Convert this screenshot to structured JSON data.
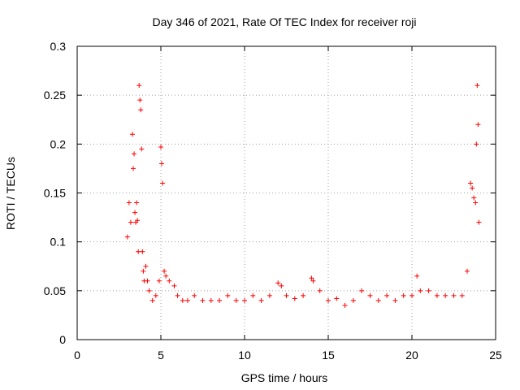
{
  "chart_data": {
    "type": "scatter",
    "title": "Day 346 of 2021, Rate Of TEC Index for receiver roji",
    "xlabel": "GPS time / hours",
    "ylabel": "ROTI / TECUs",
    "xlim": [
      0,
      25
    ],
    "ylim": [
      0,
      0.3
    ],
    "xticks": [
      0,
      5,
      10,
      15,
      20,
      25
    ],
    "yticks": [
      0,
      0.05,
      0.1,
      0.15,
      0.2,
      0.25,
      0.3
    ],
    "xtick_labels": [
      "0",
      "5",
      "10",
      "15",
      "20",
      "25"
    ],
    "ytick_labels": [
      "0",
      "0.05",
      "0.1",
      "0.15",
      "0.2",
      "0.25",
      "0.3"
    ],
    "grid": true,
    "marker": "+",
    "color": "#ff0000",
    "series": [
      {
        "name": "ROTI",
        "x": [
          3.0,
          3.1,
          3.2,
          3.3,
          3.35,
          3.4,
          3.45,
          3.5,
          3.55,
          3.6,
          3.65,
          3.7,
          3.75,
          3.8,
          3.85,
          3.9,
          3.95,
          4.0,
          4.1,
          4.2,
          4.3,
          4.5,
          4.7,
          4.9,
          5.0,
          5.05,
          5.1,
          5.2,
          5.3,
          5.5,
          5.8,
          6.0,
          6.3,
          6.6,
          7.0,
          7.5,
          8.0,
          8.5,
          9.0,
          9.5,
          10.0,
          10.5,
          11.0,
          11.5,
          12.0,
          12.2,
          12.5,
          13.0,
          13.5,
          14.0,
          14.1,
          14.5,
          15.0,
          15.5,
          16.0,
          16.5,
          17.0,
          17.5,
          18.0,
          18.5,
          19.0,
          19.5,
          20.0,
          20.3,
          20.5,
          21.0,
          21.5,
          22.0,
          22.5,
          23.0,
          23.3,
          23.5,
          23.6,
          23.7,
          23.8,
          23.85,
          23.9,
          23.95,
          24.0
        ],
        "y": [
          0.105,
          0.14,
          0.12,
          0.21,
          0.175,
          0.19,
          0.13,
          0.12,
          0.14,
          0.122,
          0.09,
          0.26,
          0.245,
          0.235,
          0.195,
          0.09,
          0.07,
          0.06,
          0.075,
          0.06,
          0.05,
          0.04,
          0.045,
          0.06,
          0.197,
          0.18,
          0.16,
          0.07,
          0.065,
          0.06,
          0.055,
          0.045,
          0.04,
          0.04,
          0.045,
          0.04,
          0.04,
          0.04,
          0.045,
          0.04,
          0.04,
          0.045,
          0.04,
          0.045,
          0.058,
          0.055,
          0.045,
          0.042,
          0.045,
          0.063,
          0.06,
          0.05,
          0.04,
          0.042,
          0.035,
          0.04,
          0.05,
          0.045,
          0.04,
          0.045,
          0.04,
          0.045,
          0.045,
          0.065,
          0.05,
          0.05,
          0.045,
          0.045,
          0.045,
          0.045,
          0.07,
          0.16,
          0.155,
          0.145,
          0.14,
          0.2,
          0.26,
          0.22,
          0.12
        ]
      }
    ]
  }
}
